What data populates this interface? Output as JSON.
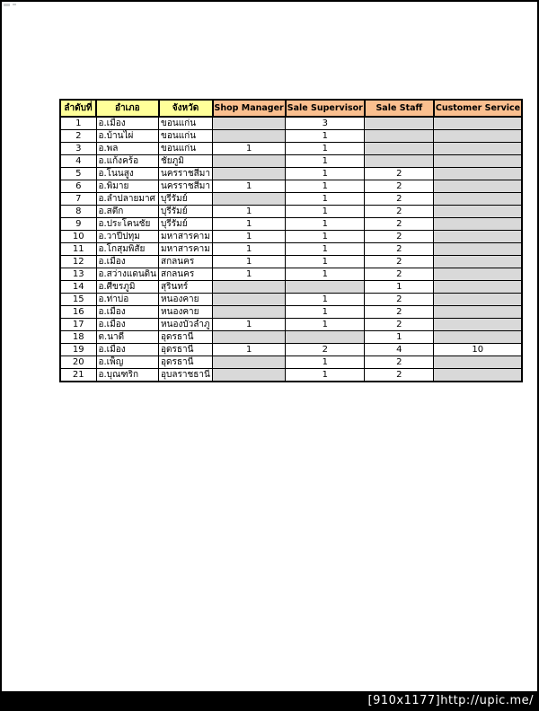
{
  "page": {
    "watermark": "[910x1177]http://upic.me/"
  },
  "table": {
    "columns": [
      {
        "key": "no",
        "label": "ลำดับที่",
        "group": "thai"
      },
      {
        "key": "district",
        "label": "อำเภอ",
        "group": "thai"
      },
      {
        "key": "province",
        "label": "จังหวัด",
        "group": "thai"
      },
      {
        "key": "shop_manager",
        "label": "Shop Manager",
        "group": "english"
      },
      {
        "key": "sale_supervisor",
        "label": "Sale Supervisor",
        "group": "english"
      },
      {
        "key": "sale_staff",
        "label": "Sale Staff",
        "group": "english"
      },
      {
        "key": "customer_service",
        "label": "Customer Service",
        "group": "english"
      }
    ],
    "colors": {
      "thai_header_bg": "#FFFF99",
      "english_header_bg": "#FABF8F",
      "empty_cell_bg": "#D9D9D9",
      "border": "#000000"
    },
    "rows": [
      [
        "1",
        "อ.เมือง",
        "ขอนแก่น",
        "",
        "3",
        "",
        ""
      ],
      [
        "2",
        "อ.บ้านไผ่",
        "ขอนแก่น",
        "",
        "1",
        "",
        ""
      ],
      [
        "3",
        "อ.พล",
        "ขอนแก่น",
        "1",
        "1",
        "",
        ""
      ],
      [
        "4",
        "อ.แก้งคร้อ",
        "ชัยภูมิ",
        "",
        "1",
        "",
        ""
      ],
      [
        "5",
        "อ.โนนสูง",
        "นครราชสีมา",
        "",
        "1",
        "2",
        ""
      ],
      [
        "6",
        "อ.พิมาย",
        "นครราชสีมา",
        "1",
        "1",
        "2",
        ""
      ],
      [
        "7",
        "อ.ลำปลายมาศ",
        "บุรีรัมย์",
        "",
        "1",
        "2",
        ""
      ],
      [
        "8",
        "อ.สตึก",
        "บุรีรัมย์",
        "1",
        "1",
        "2",
        ""
      ],
      [
        "9",
        "อ.ประโคนชัย",
        "บุรีรัมย์",
        "1",
        "1",
        "2",
        ""
      ],
      [
        "10",
        "อ.วาปีปทุม",
        "มหาสารคาม",
        "1",
        "1",
        "2",
        ""
      ],
      [
        "11",
        "อ.โกสุมพิสัย",
        "มหาสารคาม",
        "1",
        "1",
        "2",
        ""
      ],
      [
        "12",
        "อ.เมือง",
        "สกลนคร",
        "1",
        "1",
        "2",
        ""
      ],
      [
        "13",
        "อ.สว่างแดนดิน",
        "สกลนคร",
        "1",
        "1",
        "2",
        ""
      ],
      [
        "14",
        "อ.ศีขรภูมิ",
        "สุรินทร์",
        "",
        "",
        "1",
        ""
      ],
      [
        "15",
        "อ.ท่าบ่อ",
        "หนองคาย",
        "",
        "1",
        "2",
        ""
      ],
      [
        "16",
        "อ.เมือง",
        "หนองคาย",
        "",
        "1",
        "2",
        ""
      ],
      [
        "17",
        "อ.เมือง",
        "หนองบัวลำภู",
        "1",
        "1",
        "2",
        ""
      ],
      [
        "18",
        "ต.นาดี",
        "อุดรธานี",
        "",
        "",
        "1",
        ""
      ],
      [
        "19",
        "อ.เมือง",
        "อุดรธานี",
        "1",
        "2",
        "4",
        "10"
      ],
      [
        "20",
        "อ.เพ็ญ",
        "อุดรธานี",
        "",
        "1",
        "2",
        ""
      ],
      [
        "21",
        "อ.บุณฑริก",
        "อุบลราชธานี",
        "",
        "1",
        "2",
        ""
      ]
    ]
  }
}
